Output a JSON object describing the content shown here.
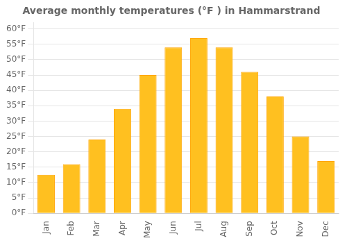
{
  "chart_data": {
    "type": "bar",
    "title": "Average monthly temperatures (°F ) in Hammarstrand",
    "categories": [
      "Jan",
      "Feb",
      "Mar",
      "Apr",
      "May",
      "Jun",
      "Jul",
      "Aug",
      "Sep",
      "Oct",
      "Nov",
      "Dec"
    ],
    "values": [
      12.5,
      16.0,
      24.0,
      34.0,
      45.0,
      54.0,
      57.0,
      54.0,
      46.0,
      38.0,
      25.0,
      17.0
    ],
    "color": "#FFC020",
    "ylim": [
      0,
      62
    ],
    "yticks": [
      {
        "value": 0,
        "label": "0°F"
      },
      {
        "value": 5,
        "label": "5°F"
      },
      {
        "value": 10,
        "label": "10°F"
      },
      {
        "value": 15,
        "label": "15°F"
      },
      {
        "value": 20,
        "label": "20°F"
      },
      {
        "value": 25,
        "label": "25°F"
      },
      {
        "value": 30,
        "label": "30°F"
      },
      {
        "value": 35,
        "label": "35°F"
      },
      {
        "value": 40,
        "label": "40°F"
      },
      {
        "value": 45,
        "label": "45°F"
      },
      {
        "value": 50,
        "label": "50°F"
      },
      {
        "value": 55,
        "label": "55°F"
      },
      {
        "value": 60,
        "label": "60°F"
      }
    ],
    "grid": true
  }
}
